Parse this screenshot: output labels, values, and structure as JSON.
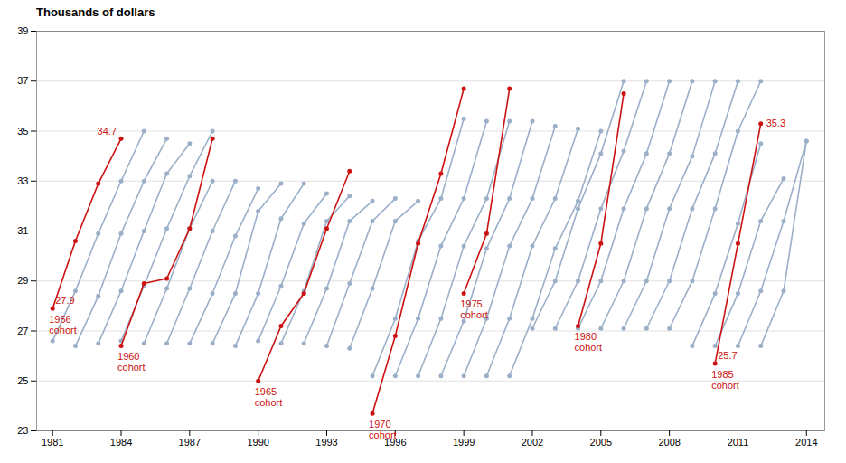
{
  "chart_data": {
    "type": "line",
    "title": "Thousands of dollars",
    "marker": "circle",
    "grid": true,
    "xlim": [
      1980.3,
      2014.8
    ],
    "xticks": [
      1981,
      1984,
      1987,
      1990,
      1993,
      1996,
      1999,
      2002,
      2005,
      2008,
      2011,
      2014
    ],
    "ylim": [
      23,
      39
    ],
    "yticks": [
      23,
      25,
      27,
      29,
      31,
      33,
      35,
      37,
      39
    ],
    "series": [
      {
        "color": "#9BAFC8",
        "x": [
          1981,
          1982,
          1983,
          1984,
          1985
        ],
        "values": [
          26.6,
          28.6,
          30.9,
          33.0,
          35.0
        ]
      },
      {
        "color": "#9BAFC8",
        "x": [
          1982,
          1983,
          1984,
          1985,
          1986
        ],
        "values": [
          26.4,
          28.4,
          30.9,
          33.0,
          34.7
        ]
      },
      {
        "color": "#9BAFC8",
        "x": [
          1983,
          1984,
          1985,
          1986,
          1987
        ],
        "values": [
          26.5,
          28.6,
          31.0,
          33.3,
          34.5
        ]
      },
      {
        "color": "#9BAFC8",
        "x": [
          1984,
          1985,
          1986,
          1987,
          1988
        ],
        "values": [
          26.6,
          28.8,
          31.1,
          33.2,
          35.0
        ]
      },
      {
        "color": "#9BAFC8",
        "x": [
          1985,
          1986,
          1987,
          1988
        ],
        "values": [
          26.5,
          28.7,
          31.1,
          33.0
        ]
      },
      {
        "color": "#9BAFC8",
        "x": [
          1986,
          1987,
          1988,
          1989
        ],
        "values": [
          26.5,
          28.7,
          31.0,
          33.0
        ]
      },
      {
        "color": "#9BAFC8",
        "x": [
          1987,
          1988,
          1989,
          1990
        ],
        "values": [
          26.5,
          28.5,
          30.8,
          32.7
        ]
      },
      {
        "color": "#9BAFC8",
        "x": [
          1988,
          1989,
          1990,
          1991
        ],
        "values": [
          26.5,
          28.5,
          31.8,
          32.9
        ]
      },
      {
        "color": "#9BAFC8",
        "x": [
          1989,
          1990,
          1991,
          1992
        ],
        "values": [
          26.4,
          28.5,
          31.5,
          32.9
        ]
      },
      {
        "color": "#9BAFC8",
        "x": [
          1990,
          1991,
          1992,
          1993
        ],
        "values": [
          26.6,
          28.8,
          31.3,
          32.5
        ]
      },
      {
        "color": "#9BAFC8",
        "x": [
          1991,
          1992,
          1993,
          1994
        ],
        "values": [
          26.5,
          28.6,
          31.4,
          32.4
        ]
      },
      {
        "color": "#9BAFC8",
        "x": [
          1992,
          1993,
          1994,
          1995
        ],
        "values": [
          26.5,
          28.7,
          31.4,
          32.2
        ]
      },
      {
        "color": "#9BAFC8",
        "x": [
          1993,
          1994,
          1995,
          1996
        ],
        "values": [
          26.4,
          28.9,
          31.4,
          32.3
        ]
      },
      {
        "color": "#9BAFC8",
        "x": [
          1994,
          1995,
          1996,
          1997
        ],
        "values": [
          26.3,
          28.7,
          31.4,
          32.2
        ]
      },
      {
        "color": "#9BAFC8",
        "x": [
          1995,
          1996,
          1997,
          1998,
          1999
        ],
        "values": [
          25.2,
          27.5,
          30.6,
          32.3,
          35.5
        ]
      },
      {
        "color": "#9BAFC8",
        "x": [
          1996,
          1997,
          1998,
          1999,
          2000
        ],
        "values": [
          25.2,
          27.5,
          30.4,
          32.3,
          35.4
        ]
      },
      {
        "color": "#9BAFC8",
        "x": [
          1997,
          1998,
          1999,
          2000,
          2001
        ],
        "values": [
          25.2,
          27.5,
          30.4,
          32.3,
          35.4
        ]
      },
      {
        "color": "#9BAFC8",
        "x": [
          1998,
          1999,
          2000,
          2001,
          2002
        ],
        "values": [
          25.2,
          27.4,
          30.3,
          32.3,
          35.4
        ]
      },
      {
        "color": "#9BAFC8",
        "x": [
          1999,
          2000,
          2001,
          2002,
          2003
        ],
        "values": [
          25.2,
          27.5,
          30.4,
          32.3,
          35.2
        ]
      },
      {
        "color": "#9BAFC8",
        "x": [
          2000,
          2001,
          2002,
          2003,
          2004
        ],
        "values": [
          25.2,
          27.5,
          30.4,
          32.3,
          35.1
        ]
      },
      {
        "color": "#9BAFC8",
        "x": [
          2001,
          2002,
          2003,
          2004,
          2005
        ],
        "values": [
          25.2,
          27.5,
          30.3,
          32.2,
          35.0
        ]
      },
      {
        "color": "#9BAFC8",
        "x": [
          2002,
          2003,
          2004,
          2005,
          2006
        ],
        "values": [
          27.1,
          29.0,
          31.9,
          34.1,
          37.0
        ]
      },
      {
        "color": "#9BAFC8",
        "x": [
          2003,
          2004,
          2005,
          2006,
          2007
        ],
        "values": [
          27.1,
          29.0,
          31.9,
          34.2,
          37.0
        ]
      },
      {
        "color": "#9BAFC8",
        "x": [
          2004,
          2005,
          2006,
          2007,
          2008
        ],
        "values": [
          27.1,
          29.0,
          31.9,
          34.1,
          37.0
        ]
      },
      {
        "color": "#9BAFC8",
        "x": [
          2005,
          2006,
          2007,
          2008,
          2009
        ],
        "values": [
          27.1,
          29.0,
          31.9,
          34.1,
          37.0
        ]
      },
      {
        "color": "#9BAFC8",
        "x": [
          2006,
          2007,
          2008,
          2009,
          2010
        ],
        "values": [
          27.1,
          29.0,
          31.9,
          34.0,
          37.0
        ]
      },
      {
        "color": "#9BAFC8",
        "x": [
          2007,
          2008,
          2009,
          2010,
          2011
        ],
        "values": [
          27.1,
          29.0,
          31.9,
          34.1,
          37.0
        ]
      },
      {
        "color": "#9BAFC8",
        "x": [
          2008,
          2009,
          2010,
          2011,
          2012
        ],
        "values": [
          27.1,
          29.0,
          31.9,
          35.0,
          37.0
        ]
      },
      {
        "color": "#9BAFC8",
        "x": [
          2009,
          2010,
          2011,
          2012
        ],
        "values": [
          26.4,
          28.5,
          31.3,
          34.5
        ]
      },
      {
        "color": "#9BAFC8",
        "x": [
          2010,
          2011,
          2012,
          2013
        ],
        "values": [
          26.4,
          28.5,
          31.4,
          33.1
        ]
      },
      {
        "color": "#9BAFC8",
        "x": [
          2011,
          2012,
          2013,
          2014
        ],
        "values": [
          26.4,
          28.6,
          31.4,
          34.6
        ]
      },
      {
        "color": "#9BAFC8",
        "x": [
          2012,
          2013,
          2014
        ],
        "values": [
          26.4,
          28.6,
          34.6
        ]
      },
      {
        "color": "#CC1111",
        "x": [
          1981,
          1982,
          1983,
          1984
        ],
        "values": [
          27.9,
          30.6,
          32.9,
          34.7
        ]
      },
      {
        "color": "#CC1111",
        "x": [
          1984,
          1985,
          1986,
          1987,
          1988
        ],
        "values": [
          26.4,
          28.9,
          29.1,
          31.1,
          34.7
        ]
      },
      {
        "color": "#CC1111",
        "x": [
          1990,
          1991,
          1992,
          1993,
          1994
        ],
        "values": [
          25.0,
          27.2,
          28.5,
          31.1,
          33.4
        ]
      },
      {
        "color": "#CC1111",
        "x": [
          1995,
          1996,
          1997,
          1998,
          1999
        ],
        "values": [
          23.7,
          26.8,
          30.5,
          33.3,
          36.7
        ]
      },
      {
        "color": "#CC1111",
        "x": [
          1999,
          2000,
          2001
        ],
        "values": [
          28.5,
          30.9,
          36.7
        ]
      },
      {
        "color": "#CC1111",
        "x": [
          2004,
          2005,
          2006
        ],
        "values": [
          27.2,
          30.5,
          36.5
        ]
      },
      {
        "color": "#CC1111",
        "x": [
          2010,
          2011,
          2012
        ],
        "values": [
          25.7,
          30.5,
          35.3
        ]
      }
    ],
    "annotations": [
      {
        "text": "27.9",
        "x": 1981,
        "y": 27.9,
        "color": "#CC1111"
      },
      {
        "text": "34.7",
        "x": 1984,
        "y": 34.7,
        "color": "#CC1111"
      },
      {
        "text": "25.7",
        "x": 2010,
        "y": 25.7,
        "color": "#CC1111"
      },
      {
        "text": "35.3",
        "x": 2012,
        "y": 35.3,
        "color": "#CC1111"
      },
      {
        "text": "1956\ncohort",
        "x": 1981,
        "y": 27.9,
        "color": "#CC1111"
      },
      {
        "text": "1960\ncohort",
        "x": 1984,
        "y": 26.4,
        "color": "#CC1111"
      },
      {
        "text": "1965\ncohort",
        "x": 1990,
        "y": 25.0,
        "color": "#CC1111"
      },
      {
        "text": "1970\ncohort",
        "x": 1995,
        "y": 23.7,
        "color": "#CC1111"
      },
      {
        "text": "1975\ncohort",
        "x": 1999,
        "y": 28.5,
        "color": "#CC1111"
      },
      {
        "text": "1980\ncohort",
        "x": 2004,
        "y": 27.2,
        "color": "#CC1111"
      },
      {
        "text": "1985\ncohort",
        "x": 2010,
        "y": 25.7,
        "color": "#CC1111"
      }
    ]
  }
}
